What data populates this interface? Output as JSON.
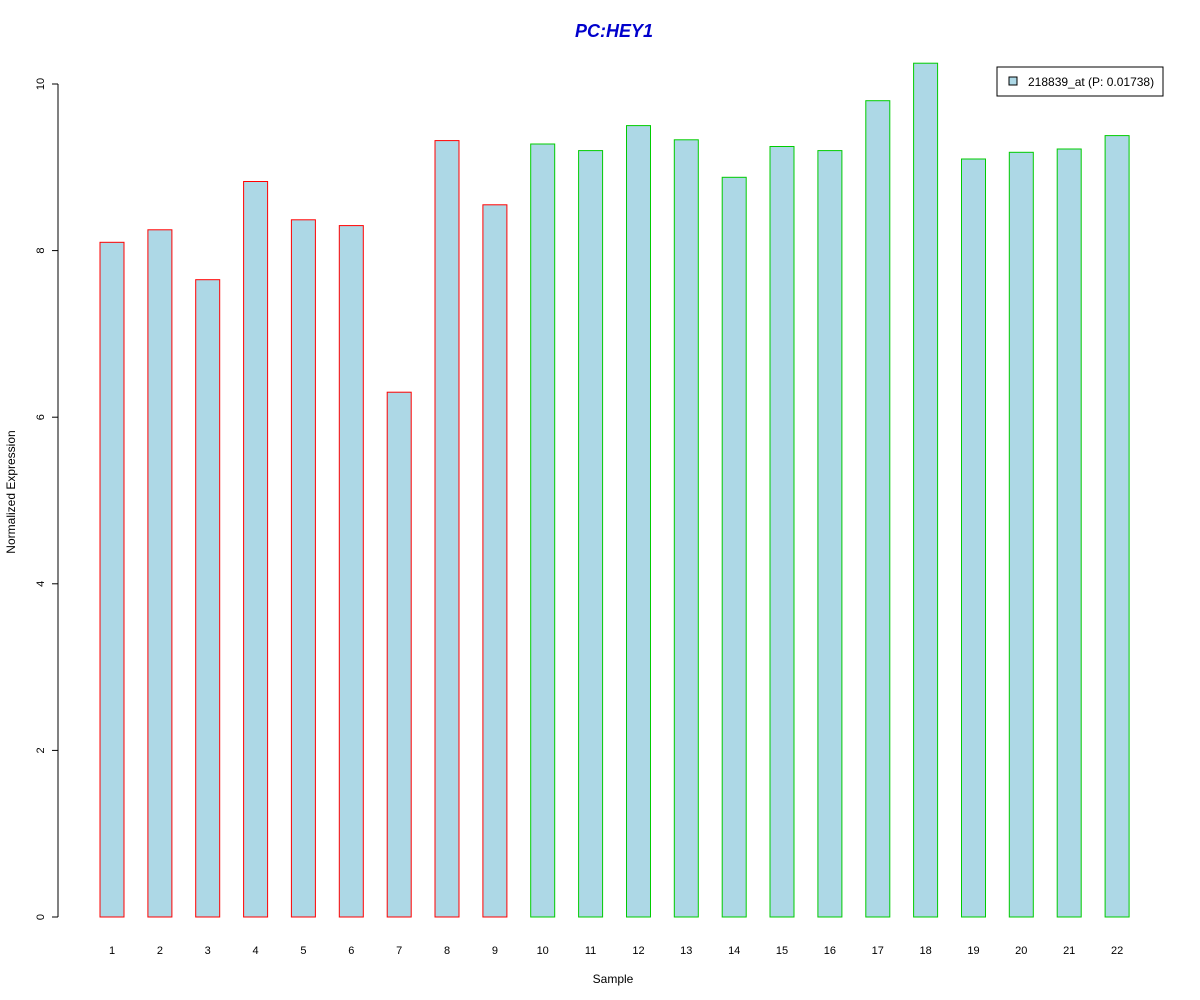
{
  "chart_data": {
    "type": "bar",
    "title": "PC:HEY1",
    "title_color": "#0000CC",
    "xlabel": "Sample",
    "ylabel": "Normalized Expression",
    "ylim": [
      0,
      10.3
    ],
    "yticks": [
      0,
      2,
      4,
      6,
      8,
      10
    ],
    "grid": false,
    "legend_position": "top-right",
    "fill_color": "#ADD8E6",
    "categories": [
      "1",
      "2",
      "3",
      "4",
      "5",
      "6",
      "7",
      "8",
      "9",
      "10",
      "11",
      "12",
      "13",
      "14",
      "15",
      "16",
      "17",
      "18",
      "19",
      "20",
      "21",
      "22"
    ],
    "series": [
      {
        "name": "218839_at (P: 0.01738)",
        "values": [
          8.1,
          8.25,
          7.65,
          8.83,
          8.37,
          8.3,
          6.3,
          9.32,
          8.55,
          9.28,
          9.2,
          9.5,
          9.33,
          8.88,
          9.25,
          9.2,
          9.8,
          10.25,
          9.1,
          9.18,
          9.22,
          9.38
        ]
      }
    ],
    "groups": [
      {
        "samples": [
          "1",
          "2",
          "3",
          "4",
          "5",
          "6",
          "7",
          "8",
          "9"
        ],
        "outline_color": "#FF0000"
      },
      {
        "samples": [
          "10",
          "11",
          "12",
          "13",
          "14",
          "15",
          "16",
          "17",
          "18",
          "19",
          "20",
          "21",
          "22"
        ],
        "outline_color": "#00CC00"
      }
    ]
  }
}
